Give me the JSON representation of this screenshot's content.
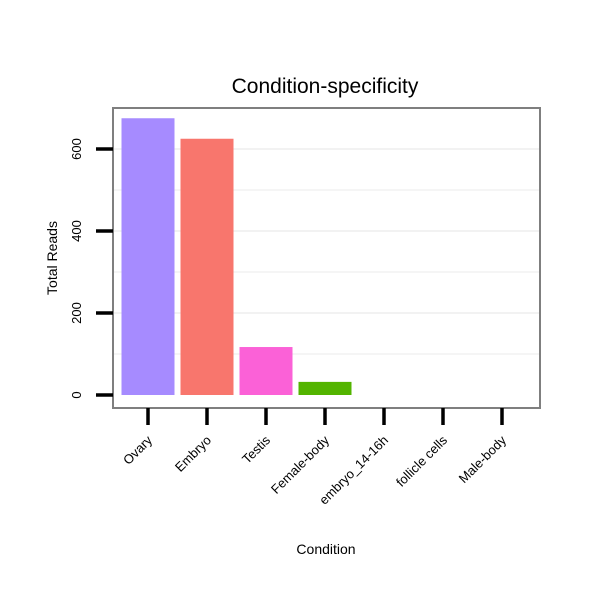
{
  "chart_data": {
    "type": "bar",
    "title": "Condition-specificity",
    "xlabel": "Condition",
    "ylabel": "Total Reads",
    "categories": [
      "Ovary",
      "Embryo",
      "Testis",
      "Female-body",
      "embryo_14-16h",
      "follicle cells",
      "Male-body"
    ],
    "values": [
      675,
      625,
      117,
      32,
      0,
      0,
      0
    ],
    "colors": [
      "#a68bff",
      "#f8766d",
      "#fb61d7",
      "#53b400",
      "#ffffff",
      "#ffffff",
      "#ffffff"
    ],
    "yticks": [
      0,
      200,
      400,
      600
    ],
    "ylim": [
      -30,
      700
    ],
    "grid": true,
    "legend": "none"
  }
}
